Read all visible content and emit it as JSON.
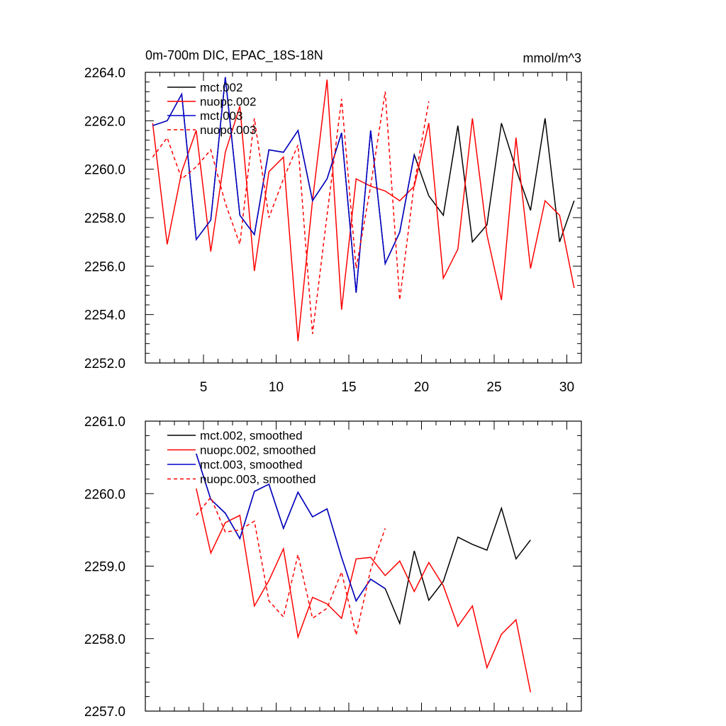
{
  "colors": {
    "mct002": "#000000",
    "nuopc002": "#ff0000",
    "mct003": "#0000cc",
    "nuopc003": "#ff0000"
  },
  "chart_data": [
    {
      "type": "line",
      "title": "0m-700m DIC, EPAC_18S-18N",
      "units": "mmol/m^3",
      "xlim": [
        1,
        31
      ],
      "ylim": [
        2252,
        2264
      ],
      "xticks": [
        5,
        10,
        15,
        20,
        25,
        30
      ],
      "yticks": [
        2252,
        2254,
        2256,
        2258,
        2260,
        2262,
        2264
      ],
      "ytick_labels": [
        "2252.0",
        "2254.0",
        "2256.0",
        "2258.0",
        "2260.0",
        "2262.0",
        "2264.0"
      ],
      "legend_position": "top-left",
      "series": [
        {
          "name": "mct.002",
          "color": "#000000",
          "dash": false,
          "x_start": 1.5,
          "values": [
            2261.8,
            2262.0,
            2263.1,
            2257.1,
            2257.9,
            2263.8,
            2258.1,
            2257.3,
            2260.8,
            2260.7,
            2261.6,
            2258.7,
            2259.6,
            2261.5,
            2254.9,
            2261.6,
            2256.1,
            2257.4,
            2260.6,
            2258.9,
            2258.1,
            2261.8,
            2257.0,
            2257.7,
            2261.9,
            2260.0,
            2258.3,
            2262.1,
            2257.0,
            2258.7
          ]
        },
        {
          "name": "nuopc.002",
          "color": "#ff0000",
          "dash": false,
          "x_start": 1.5,
          "values": [
            2261.9,
            2256.9,
            2259.9,
            2261.6,
            2256.6,
            2260.7,
            2262.6,
            2255.8,
            2259.9,
            2260.5,
            2252.9,
            2258.7,
            2263.7,
            2254.2,
            2259.6,
            2259.3,
            2259.1,
            2258.7,
            2259.3,
            2261.9,
            2255.5,
            2256.7,
            2262.1,
            2257.3,
            2254.6,
            2261.3,
            2255.9,
            2258.7,
            2258.1,
            2255.1
          ]
        },
        {
          "name": "mct.003",
          "color": "#0000cc",
          "dash": false,
          "x_start": 1.5,
          "values": [
            2261.8,
            2262.0,
            2263.1,
            2257.1,
            2257.9,
            2263.8,
            2258.1,
            2257.3,
            2260.8,
            2260.7,
            2261.6,
            2258.7,
            2259.6,
            2261.5,
            2254.9,
            2261.6,
            2256.1,
            2257.4,
            2260.6
          ]
        },
        {
          "name": "nuopc.003",
          "color": "#ff0000",
          "dash": true,
          "x_start": 1.5,
          "values": [
            2260.5,
            2261.3,
            2259.6,
            2260.1,
            2260.8,
            2258.6,
            2256.9,
            2262.1,
            2258.0,
            2259.6,
            2261.0,
            2253.2,
            2258.1,
            2262.9,
            2255.9,
            2259.3,
            2263.2,
            2254.6,
            2259.4,
            2262.8
          ]
        }
      ]
    },
    {
      "type": "line",
      "title": "",
      "xlim": [
        1,
        31
      ],
      "ylim": [
        2257,
        2261
      ],
      "xticks": [
        5,
        10,
        15,
        20,
        25,
        30
      ],
      "yticks": [
        2257,
        2258,
        2259,
        2260,
        2261
      ],
      "ytick_labels": [
        "2257.0",
        "2258.0",
        "2259.0",
        "2260.0",
        "2261.0"
      ],
      "legend_position": "top-left",
      "series": [
        {
          "name": "mct.002, smoothed",
          "color": "#000000",
          "dash": false,
          "x_start": 4.5,
          "values": [
            2260.55,
            2259.92,
            2259.73,
            2259.38,
            2260.03,
            2260.13,
            2259.52,
            2260.02,
            2259.68,
            2259.79,
            2259.12,
            2258.52,
            2258.82,
            2258.69,
            2258.21,
            2259.21,
            2258.53,
            2258.79,
            2259.4,
            2259.3,
            2259.22,
            2259.8,
            2259.1,
            2259.36
          ]
        },
        {
          "name": "nuopc.002, smoothed",
          "color": "#ff0000",
          "dash": false,
          "x_start": 4.5,
          "values": [
            2260.07,
            2259.18,
            2259.6,
            2259.7,
            2258.45,
            2258.8,
            2259.24,
            2258.02,
            2258.57,
            2258.48,
            2258.28,
            2259.1,
            2259.12,
            2258.87,
            2259.07,
            2258.65,
            2259.05,
            2258.73,
            2258.17,
            2258.45,
            2257.6,
            2258.06,
            2258.26,
            2257.26
          ]
        },
        {
          "name": "mct.003, smoothed",
          "color": "#0000cc",
          "dash": false,
          "x_start": 4.5,
          "values": [
            2260.55,
            2259.92,
            2259.73,
            2259.38,
            2260.03,
            2260.13,
            2259.52,
            2260.02,
            2259.68,
            2259.79,
            2259.12,
            2258.52,
            2258.82,
            2258.69
          ]
        },
        {
          "name": "nuopc.003, smoothed",
          "color": "#ff0000",
          "dash": true,
          "x_start": 4.5,
          "values": [
            2259.7,
            2259.95,
            2259.47,
            2259.5,
            2259.62,
            2258.52,
            2258.3,
            2259.16,
            2258.28,
            2258.42,
            2258.92,
            2258.05,
            2258.95,
            2259.52
          ]
        }
      ]
    }
  ]
}
